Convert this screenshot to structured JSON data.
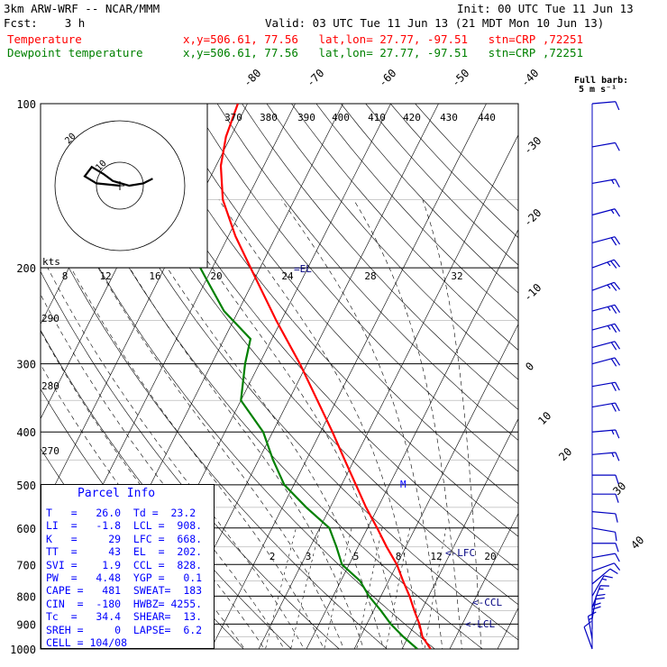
{
  "header": {
    "model": "3km ARW-WRF -- NCAR/MMM",
    "init": "Init: 00 UTC Tue 11 Jun 13",
    "fcst": "Fcst:    3 h",
    "valid": "Valid: 03 UTC Tue 11 Jun 13 (21 MDT Mon 10 Jun 13)",
    "line_temp_label": "Temperature",
    "line_temp_info": "x,y=506.61, 77.56   lat,lon= 27.77, -97.51   stn=CRP ,72251",
    "line_dew_label": "Dewpoint temperature",
    "line_dew_info": "x,y=506.61, 77.56   lat,lon= 27.77, -97.51   stn=CRP ,72251",
    "barb_legend_1": "Full barb:",
    "barb_legend_2": "5 m s⁻¹"
  },
  "colors": {
    "temperature": "#ff0000",
    "dewpoint": "#008000",
    "wind_barbs": "#0000c0",
    "background_lines": "#000000",
    "mixing_ratio": "#000000",
    "ccl_labels": "#000080",
    "parcel_info_text": "#0000ff"
  },
  "chart_data": {
    "type": "skew-t log-p",
    "pressure_levels": [
      100,
      200,
      300,
      400,
      500,
      600,
      700,
      800,
      900,
      1000
    ],
    "pressure_labels": [
      "100",
      "200",
      "300",
      "400",
      "500",
      "600",
      "700",
      "800",
      "900",
      "1000"
    ],
    "isotherm_labels": [
      "-80",
      "-70",
      "-60",
      "-50",
      "-40",
      "-30",
      "-20",
      "-10",
      "0",
      "10",
      "20",
      "30",
      "40"
    ],
    "theta_labels_top": [
      "370",
      "380",
      "390",
      "400",
      "410",
      "420",
      "430",
      "440"
    ],
    "theta_labels_left": [
      "290",
      "280",
      "270"
    ],
    "mixing_ratio_labels": [
      "2",
      "3",
      "5",
      "8",
      "12",
      "20"
    ],
    "inset_speed_labels": [
      "8",
      "12",
      "16",
      "20",
      "24",
      "28",
      "32"
    ],
    "inset_unit": "kts",
    "level_labels": {
      "el": "=EL",
      "lfc": "<-LFC",
      "ccl": "<-CCL",
      "lcl": "<-LCL",
      "m": "M"
    },
    "temperature": [
      {
        "p": 1000,
        "t": 26.0
      },
      {
        "p": 950,
        "t": 23.0
      },
      {
        "p": 900,
        "t": 21.0
      },
      {
        "p": 850,
        "t": 18.5
      },
      {
        "p": 800,
        "t": 16.0
      },
      {
        "p": 750,
        "t": 13.0
      },
      {
        "p": 700,
        "t": 10.0
      },
      {
        "p": 650,
        "t": 6.0
      },
      {
        "p": 600,
        "t": 2.0
      },
      {
        "p": 550,
        "t": -2.5
      },
      {
        "p": 500,
        "t": -7.0
      },
      {
        "p": 450,
        "t": -12.0
      },
      {
        "p": 400,
        "t": -17.5
      },
      {
        "p": 350,
        "t": -24.0
      },
      {
        "p": 300,
        "t": -31.5
      },
      {
        "p": 250,
        "t": -41.0
      },
      {
        "p": 200,
        "t": -52.0
      },
      {
        "p": 175,
        "t": -58.5
      },
      {
        "p": 150,
        "t": -65.0
      },
      {
        "p": 130,
        "t": -69.0
      },
      {
        "p": 115,
        "t": -71.0
      },
      {
        "p": 100,
        "t": -72.0
      }
    ],
    "dewpoint": [
      {
        "p": 1000,
        "td": 23.2
      },
      {
        "p": 950,
        "td": 19.0
      },
      {
        "p": 900,
        "td": 15.0
      },
      {
        "p": 850,
        "td": 11.5
      },
      {
        "p": 800,
        "td": 7.5
      },
      {
        "p": 750,
        "td": 4.0
      },
      {
        "p": 700,
        "td": -1.5
      },
      {
        "p": 650,
        "td": -4.5
      },
      {
        "p": 600,
        "td": -8.0
      },
      {
        "p": 550,
        "td": -15.0
      },
      {
        "p": 500,
        "td": -22.0
      },
      {
        "p": 450,
        "td": -27.0
      },
      {
        "p": 400,
        "td": -32.0
      },
      {
        "p": 350,
        "td": -40.0
      },
      {
        "p": 300,
        "td": -43.0
      },
      {
        "p": 270,
        "td": -44.5
      },
      {
        "p": 240,
        "td": -53.0
      },
      {
        "p": 210,
        "td": -60.0
      },
      {
        "p": 180,
        "td": -68.0
      },
      {
        "p": 160,
        "td": -76.0
      },
      {
        "p": 140,
        "td": -77.5
      },
      {
        "p": 125,
        "td": -80.0
      },
      {
        "p": 110,
        "td": -83.0
      },
      {
        "p": 100,
        "td": -85.5
      }
    ],
    "wind_profile": [
      {
        "p": 1000,
        "dir": 160,
        "spd": 10
      },
      {
        "p": 960,
        "dir": 170,
        "spd": 15
      },
      {
        "p": 920,
        "dir": 180,
        "spd": 20
      },
      {
        "p": 880,
        "dir": 190,
        "spd": 20
      },
      {
        "p": 840,
        "dir": 200,
        "spd": 15
      },
      {
        "p": 800,
        "dir": 210,
        "spd": 15
      },
      {
        "p": 760,
        "dir": 230,
        "spd": 10
      },
      {
        "p": 720,
        "dir": 250,
        "spd": 10
      },
      {
        "p": 680,
        "dir": 260,
        "spd": 10
      },
      {
        "p": 640,
        "dir": 270,
        "spd": 10
      },
      {
        "p": 600,
        "dir": 280,
        "spd": 10
      },
      {
        "p": 560,
        "dir": 275,
        "spd": 10
      },
      {
        "p": 520,
        "dir": 270,
        "spd": 10
      },
      {
        "p": 480,
        "dir": 270,
        "spd": 10
      },
      {
        "p": 440,
        "dir": 265,
        "spd": 15
      },
      {
        "p": 400,
        "dir": 265,
        "spd": 15
      },
      {
        "p": 360,
        "dir": 260,
        "spd": 20
      },
      {
        "p": 330,
        "dir": 260,
        "spd": 20
      },
      {
        "p": 300,
        "dir": 255,
        "spd": 20
      },
      {
        "p": 280,
        "dir": 255,
        "spd": 20
      },
      {
        "p": 260,
        "dir": 255,
        "spd": 25
      },
      {
        "p": 240,
        "dir": 255,
        "spd": 25
      },
      {
        "p": 220,
        "dir": 250,
        "spd": 25
      },
      {
        "p": 200,
        "dir": 250,
        "spd": 25
      },
      {
        "p": 180,
        "dir": 255,
        "spd": 20
      },
      {
        "p": 160,
        "dir": 255,
        "spd": 15
      },
      {
        "p": 140,
        "dir": 260,
        "spd": 15
      },
      {
        "p": 120,
        "dir": 260,
        "spd": 10
      },
      {
        "p": 100,
        "dir": 265,
        "spd": 10
      }
    ],
    "hodograph": [
      {
        "u": 0,
        "v": 0
      },
      {
        "u": -10,
        "v": 1
      },
      {
        "u": -15,
        "v": 4
      },
      {
        "u": -12,
        "v": 8
      },
      {
        "u": -7,
        "v": 5
      },
      {
        "u": -3,
        "v": 2
      },
      {
        "u": 4,
        "v": 0
      },
      {
        "u": 10,
        "v": 1
      },
      {
        "u": 14,
        "v": 3
      }
    ]
  },
  "parcel_info": {
    "title": "Parcel Info",
    "rows": [
      "T   =   26.0  Td =  23.2",
      "LI  =   -1.8  LCL =  908.",
      "K   =     29  LFC =  668.",
      "TT  =     43  EL  =  202.",
      "SVI =    1.9  CCL =  828.",
      "PW  =   4.48  YGP =   0.1",
      "CAPE =   481  SWEAT=  183",
      "CIN  =  -180  HWBZ= 4255.",
      "Tc  =   34.4  SHEAR=  13.",
      "SREH =     0  LAPSE=  6.2",
      "CELL = 104/08"
    ]
  }
}
